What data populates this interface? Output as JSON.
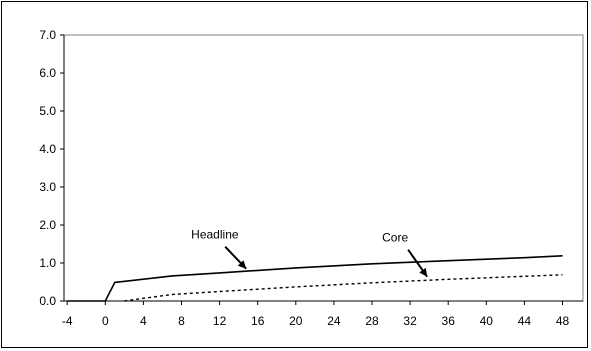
{
  "chart_data": {
    "type": "line",
    "title": "",
    "xlabel": "",
    "ylabel": "",
    "xlim": [
      -4,
      48
    ],
    "ylim": [
      0,
      7
    ],
    "x_ticks": [
      -4,
      0,
      4,
      8,
      12,
      16,
      20,
      24,
      28,
      32,
      36,
      40,
      44,
      48
    ],
    "y_ticks": [
      "0.0",
      "1.0",
      "2.0",
      "3.0",
      "4.0",
      "5.0",
      "6.0",
      "7.0"
    ],
    "grid": false,
    "legend": "none",
    "series": [
      {
        "name": "Headline",
        "style": "solid",
        "color": "#000000",
        "x": [
          -4,
          0,
          1,
          7,
          12,
          20,
          28,
          36,
          44,
          48
        ],
        "y": [
          0,
          0,
          0.49,
          0.66,
          0.74,
          0.87,
          0.98,
          1.06,
          1.14,
          1.19
        ]
      },
      {
        "name": "Core",
        "style": "dashed",
        "color": "#000000",
        "x": [
          2,
          4,
          7,
          12,
          20,
          28,
          36,
          44,
          48
        ],
        "y": [
          0,
          0.07,
          0.17,
          0.25,
          0.37,
          0.48,
          0.57,
          0.65,
          0.69
        ]
      }
    ],
    "annotations": [
      {
        "text": "Headline",
        "series": "Headline",
        "point_x": 15,
        "point_y": 0.77
      },
      {
        "text": "Core",
        "series": "Core",
        "point_x": 34,
        "point_y": 0.56
      }
    ]
  }
}
